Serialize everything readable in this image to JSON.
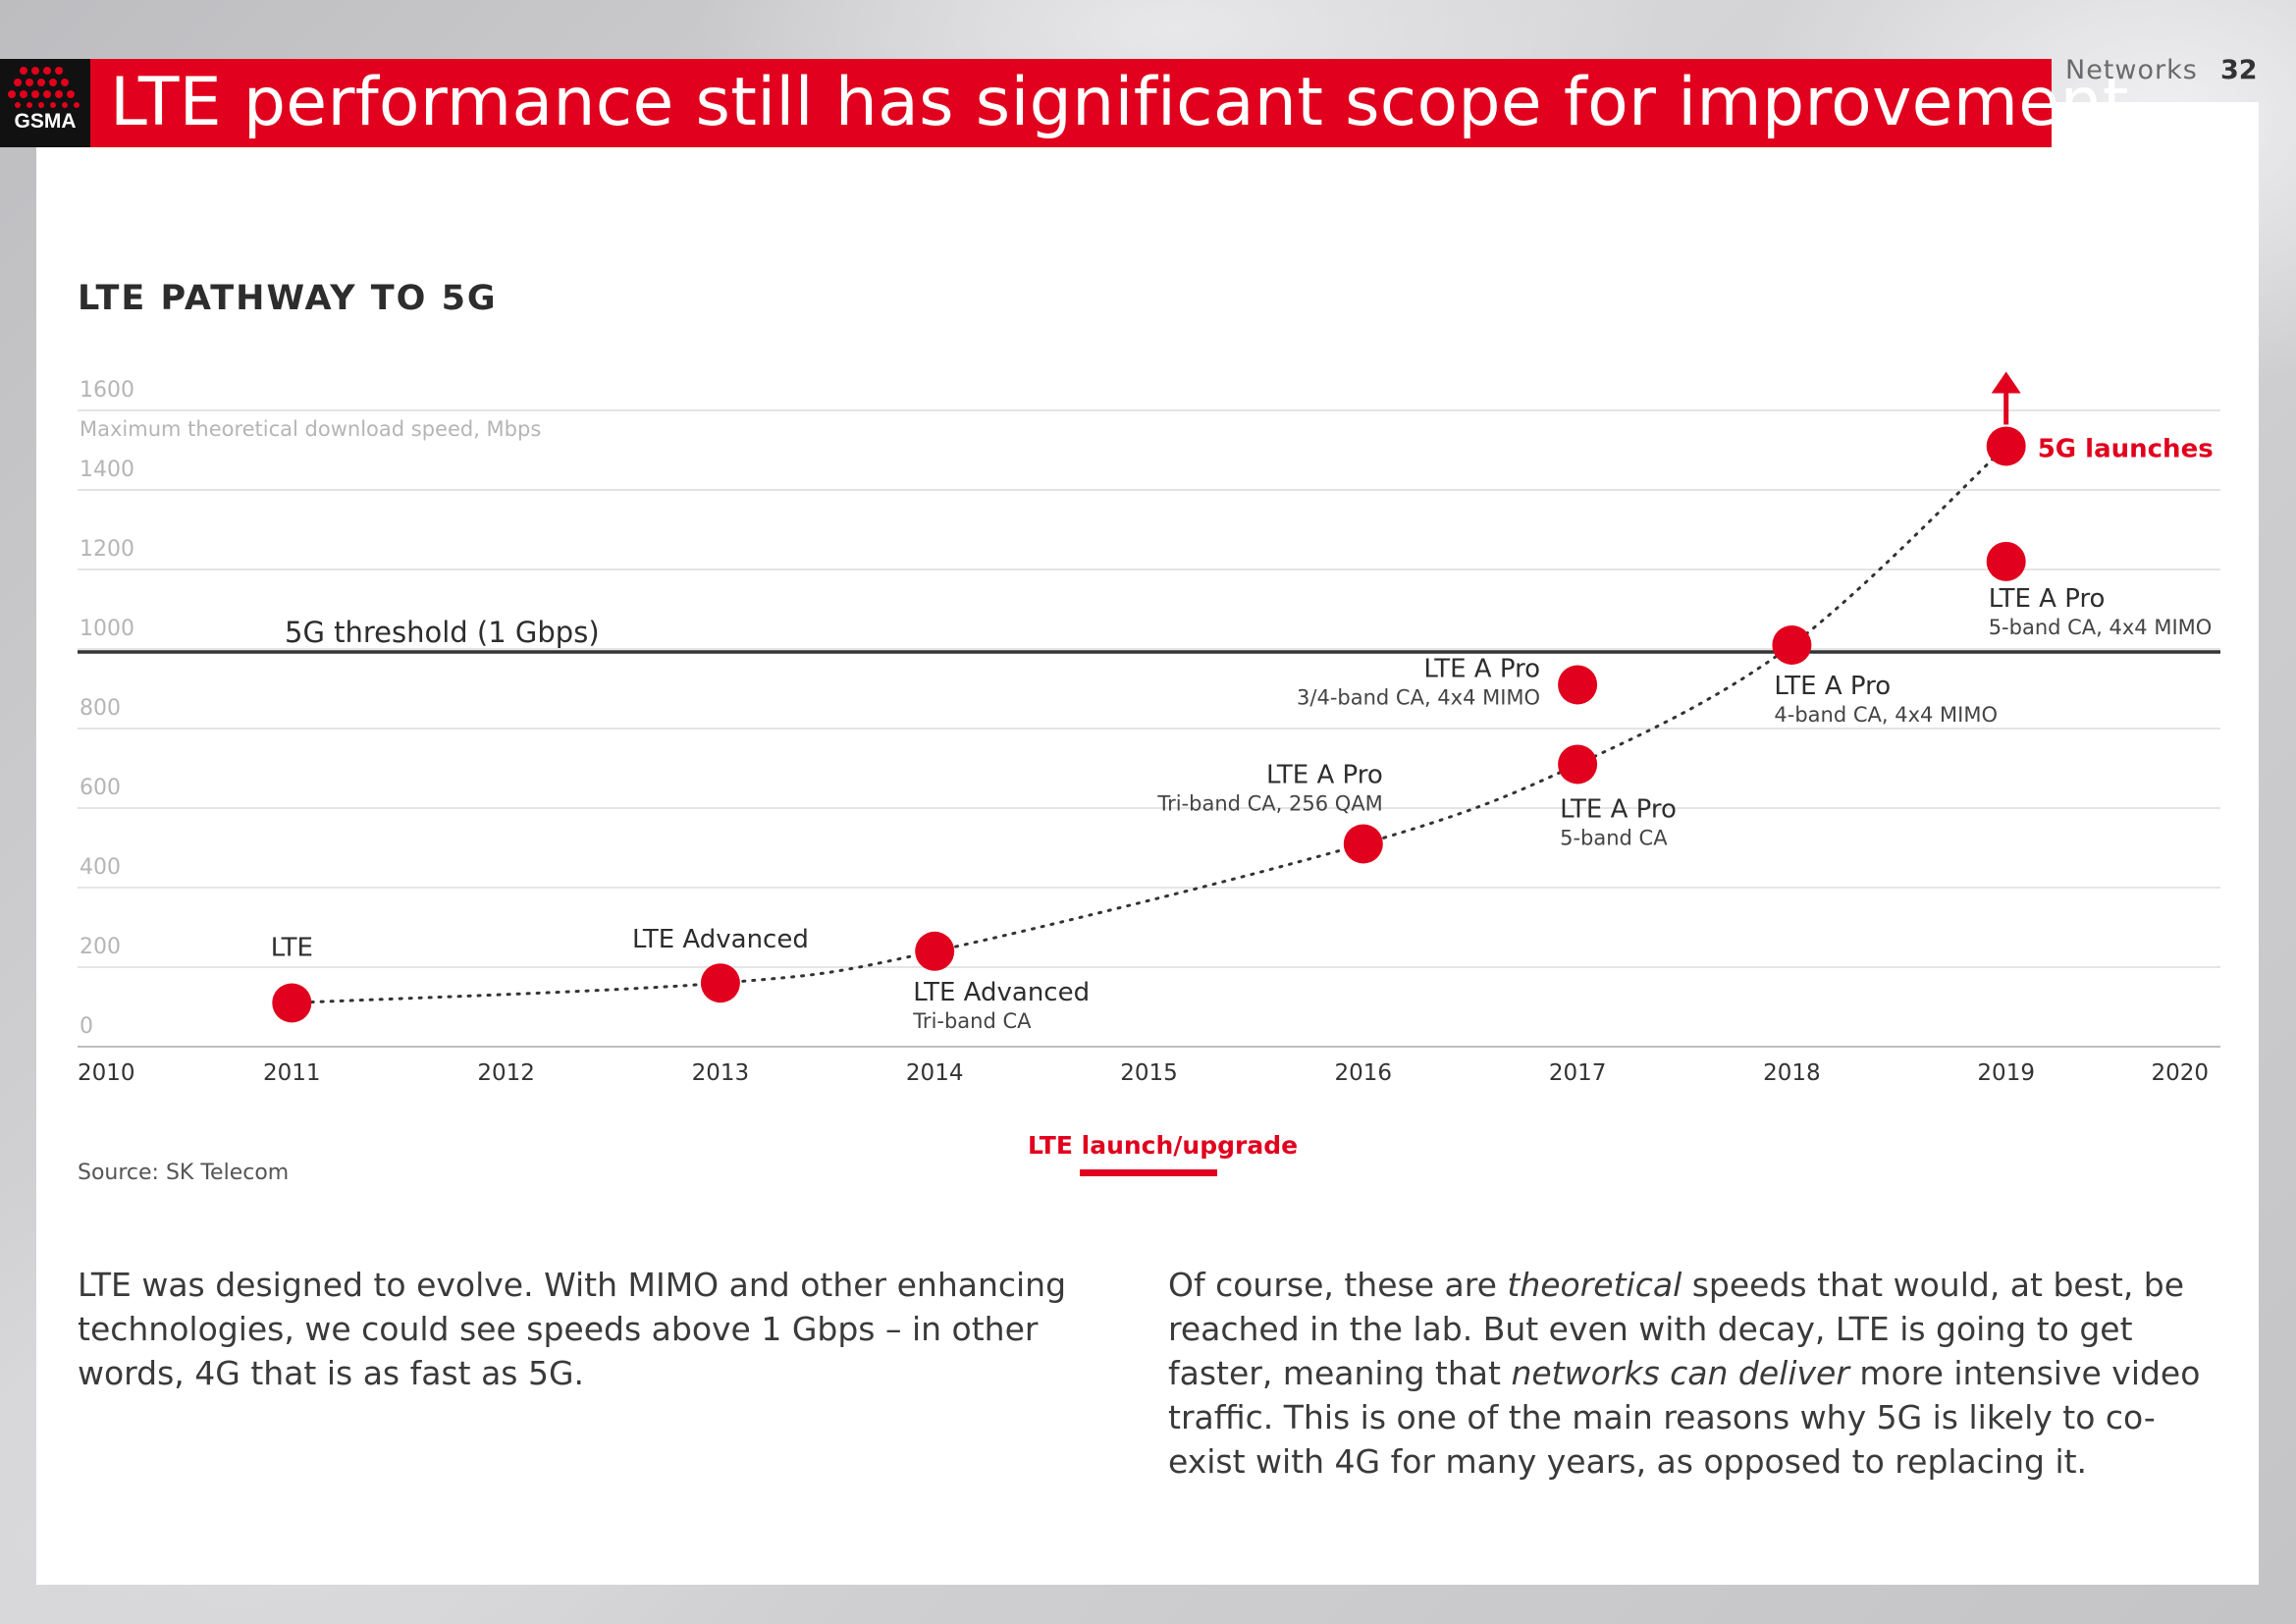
{
  "header": {
    "logo_text": "GSMA",
    "title": "LTE performance still has significant scope for improvement",
    "section": "Networks",
    "page_number": "32"
  },
  "colors": {
    "accent": "#e1001d",
    "text": "#2d2d2d",
    "grid": "#e0e0e0"
  },
  "chart_data": {
    "type": "scatter",
    "title": "LTE PATHWAY TO 5G",
    "ylabel": "Maximum theoretical download speed, Mbps",
    "ylim": [
      0,
      1600
    ],
    "xlim": [
      2010,
      2020
    ],
    "y_ticks": [
      0,
      200,
      400,
      600,
      800,
      1000,
      1200,
      1400,
      1600
    ],
    "x_ticks": [
      2010,
      2011,
      2012,
      2013,
      2014,
      2015,
      2016,
      2017,
      2018,
      2019,
      2020
    ],
    "threshold": {
      "value": 1000,
      "label": "5G threshold (1 Gbps)"
    },
    "trend_line": "dotted",
    "legend": {
      "label": "LTE launch/upgrade",
      "placement": "bottom-center"
    },
    "points": [
      {
        "x": 2011,
        "y": 110,
        "label": "LTE",
        "sub": ""
      },
      {
        "x": 2013,
        "y": 160,
        "label": "LTE Advanced",
        "sub": ""
      },
      {
        "x": 2014,
        "y": 240,
        "label": "LTE Advanced",
        "sub": "Tri-band CA"
      },
      {
        "x": 2016,
        "y": 510,
        "label": "LTE A Pro",
        "sub": "Tri-band CA, 256 QAM"
      },
      {
        "x": 2017,
        "y": 710,
        "label": "LTE A Pro",
        "sub": "5-band CA"
      },
      {
        "x": 2017,
        "y": 910,
        "label": "LTE A Pro",
        "sub": "3/4-band CA, 4x4 MIMO"
      },
      {
        "x": 2018,
        "y": 1010,
        "label": "LTE A Pro",
        "sub": "4-band CA, 4x4 MIMO"
      },
      {
        "x": 2019,
        "y": 1220,
        "label": "LTE A Pro",
        "sub": "5-band CA, 4x4 MIMO"
      },
      {
        "x": 2019,
        "y": 1510,
        "label": "5G launches",
        "sub": ""
      }
    ]
  },
  "source": "Source: SK Telecom",
  "body": {
    "left": "LTE was designed to evolve. With MIMO and other enhancing technologies, we could see speeds above 1 Gbps – in other words, 4G that is as fast as 5G.",
    "right_1": "Of course, these are ",
    "right_em1": "theoretical",
    "right_2": " speeds that would, at best, be reached in the lab. But even with decay, LTE is going to get faster, meaning that ",
    "right_em2": "networks can deliver",
    "right_3": " more intensive video traffic. This is one of the main reasons why 5G is likely to co-exist with 4G for many years, as opposed to replacing it."
  }
}
